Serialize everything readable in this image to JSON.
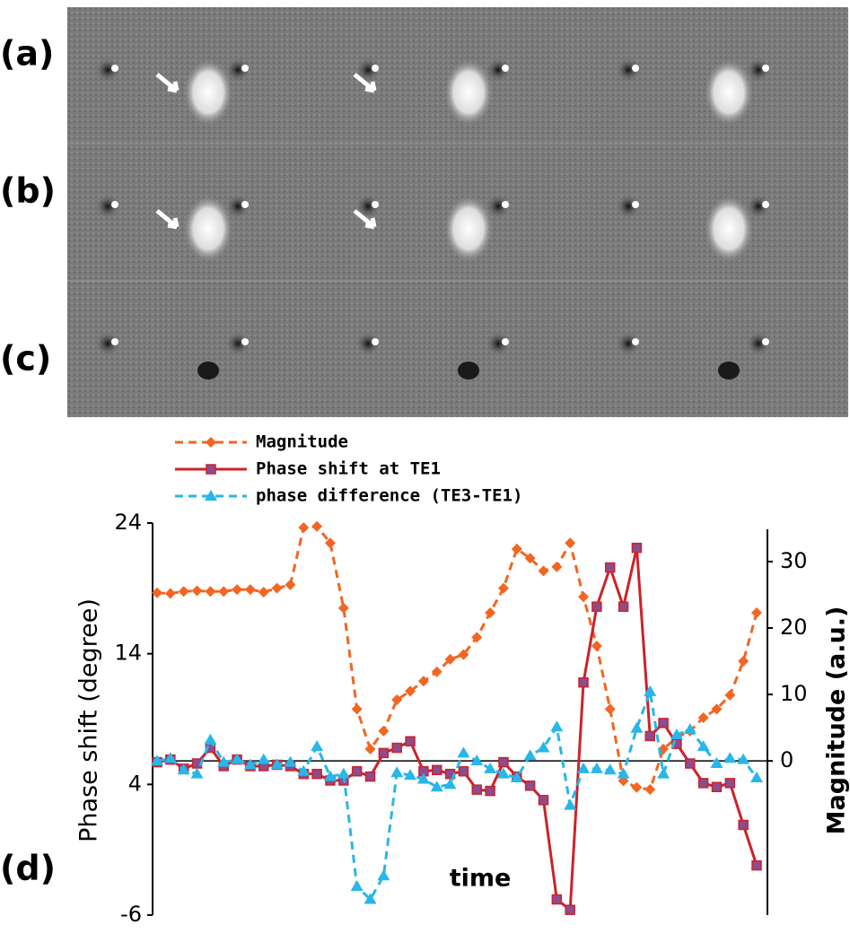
{
  "image_panels": [
    "(a)",
    "(b)",
    "(c)"
  ],
  "chart_data": {
    "type": "line",
    "panel_label": "(d)",
    "x_label": "time",
    "y_label": "Phase shift (degree)",
    "y2_label": "Magnitude (a.u.)",
    "categories": [
      null,
      null,
      null,
      null,
      null,
      null,
      null,
      null,
      null,
      null,
      null,
      null,
      null,
      null,
      null,
      null,
      null,
      null,
      null,
      null,
      null,
      null,
      null,
      null,
      null,
      null,
      null,
      null,
      null,
      null,
      null,
      null,
      null,
      null,
      null,
      null,
      null,
      null,
      null,
      null,
      null,
      null,
      null,
      null,
      null,
      null
    ],
    "ylim": [
      -6,
      24
    ],
    "yticks": [
      -6,
      4,
      14,
      24
    ],
    "y2lim": [
      -23.2,
      35.8
    ],
    "y2ticks": [
      0,
      10,
      20,
      30
    ],
    "legend": "top",
    "series": [
      {
        "name": "Magnitude",
        "color": "#f26522",
        "marker": "diamond",
        "line_style": "dashed",
        "axis": "y2",
        "values": [
          25.3,
          25.2,
          25.5,
          25.6,
          25.5,
          25.5,
          25.8,
          25.8,
          25.4,
          26.0,
          26.5,
          35.1,
          35.3,
          32.8,
          23.0,
          7.8,
          1.8,
          4.5,
          9.2,
          10.5,
          12.0,
          13.4,
          15.3,
          16.0,
          18.6,
          22.3,
          26.0,
          31.9,
          30.5,
          28.6,
          29.2,
          32.8,
          24.7,
          17.3,
          7.8,
          -3.0,
          -4.0,
          -4.3,
          1.8,
          3.5,
          4.5,
          6.5,
          7.8,
          9.9,
          15.0,
          22.3
        ]
      },
      {
        "name": "Phase shift at TE1",
        "color": "#cc2229",
        "marker": "square",
        "line_style": "solid",
        "values": [
          5.7,
          5.9,
          5.2,
          5.6,
          6.8,
          5.4,
          5.9,
          5.4,
          5.4,
          5.5,
          5.4,
          4.8,
          4.8,
          4.3,
          4.3,
          5.0,
          4.6,
          6.4,
          6.8,
          7.3,
          5.0,
          5.1,
          4.8,
          5.0,
          3.6,
          3.5,
          5.7,
          4.6,
          3.9,
          2.8,
          -4.8,
          -5.6,
          11.8,
          17.6,
          20.6,
          17.6,
          22.1,
          7.7,
          8.7,
          7.1,
          5.6,
          4.1,
          3.8,
          4.1,
          0.9,
          -2.2
        ]
      },
      {
        "name": "phase difference (TE3-TE1)",
        "color": "#29b6e8",
        "marker": "triangle",
        "line_style": "dashed",
        "values": [
          5.8,
          6.0,
          5.1,
          4.8,
          7.4,
          5.7,
          5.9,
          5.5,
          5.9,
          5.5,
          5.7,
          5.0,
          6.9,
          4.6,
          4.8,
          -3.8,
          -4.8,
          -3.0,
          4.9,
          4.7,
          4.4,
          3.8,
          4.0,
          6.4,
          5.8,
          5.2,
          4.8,
          4.5,
          6.2,
          6.8,
          8.4,
          2.4,
          5.2,
          5.2,
          5.1,
          4.8,
          8.3,
          11.1,
          4.8,
          7.8,
          8.2,
          6.9,
          5.6,
          6.0,
          5.9,
          4.5
        ]
      }
    ]
  }
}
